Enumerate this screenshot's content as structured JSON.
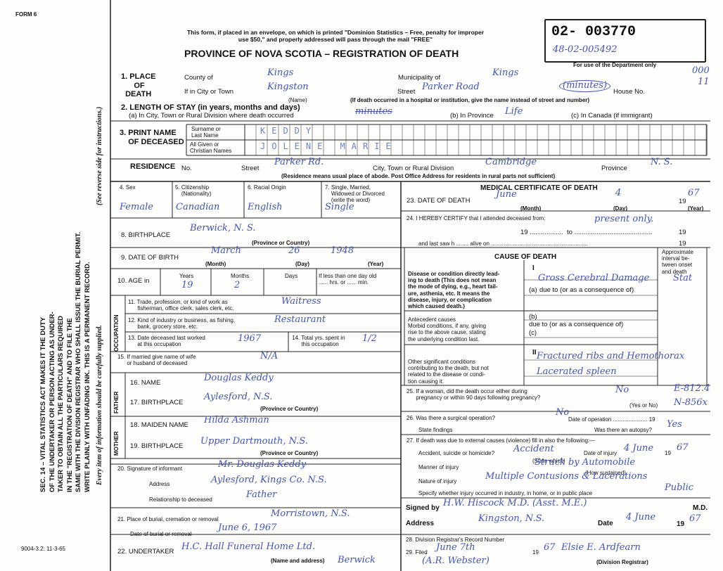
{
  "header": {
    "form_id": "FORM 6",
    "notice": "This form, if placed in an envelope, on which is printed \"Dominion Statistics – Free, penalty for improper\nuse $50,\" and properly addressed will pass through the mail \"FREE\"",
    "title": "PROVINCE OF NOVA SCOTIA – REGISTRATION OF DEATH",
    "registration_number": "02- 003770",
    "department_number": "48-02-005492",
    "department_note": "For use of the Department only",
    "margin_mark": "000",
    "margin_mark_2": "11"
  },
  "side": {
    "statute": "SEC. 14 – VITAL STATISTICS ACT MAKES IT THE DUTY\nOF THE UNDERTAKER OR PERSON ACTING AS UNDER-\nTAKER TO OBTAIN ALL THE PARTICULARS REQUIRED\nIN THE \"REGISTRATION OF DEATH\" AND TO FILE THE\nSAME WITH THE DIVISION REGISTRAR WHO SHALL ISSUE THE BURIAL PERMIT.\nWRITE PLAINLY WITH UNFADING INK. THIS IS A PERMANENT RECORD.",
    "note": "Every item of information should be carefully supplied.",
    "instructions": "(See reverse side for instructions.)",
    "print_code": "9004-3.2: 11-3-65"
  },
  "place_of_death": {
    "heading": "1. PLACE\n      OF\n  DEATH",
    "county_label": "County of",
    "county": "Kings",
    "municipality_label": "Municipality of",
    "municipality": "Kings",
    "city_label": "If in City or Town",
    "city": "Kingston",
    "name_caption": "(Name)",
    "street_label": "Street",
    "street": "Parker Road",
    "street_note": "(minutes)",
    "house_label": "House No.",
    "hospital_note": "(If death occurred in a hospital or institution, give the name instead of street and number)"
  },
  "length_of_stay": {
    "heading": "2. LENGTH OF STAY (in years, months and days)",
    "a_label": "(a) In City, Town or Rural Division where death occurred",
    "a": "minutes",
    "b_label": "(b) In Province",
    "b": "Life",
    "c_label": "(c) In Canada (if immigrant)"
  },
  "deceased": {
    "heading": "3. PRINT NAME\n    OF DECEASED",
    "surname_label": "Surname or\nLast Name",
    "surname": "KEDDY",
    "given_label": "All Given or\nChristian Names",
    "given": "JOLENE MARIE"
  },
  "residence": {
    "heading": "RESIDENCE",
    "no_label": "No.",
    "street_label": "Street",
    "street": "Parker Rd.",
    "city_label": "City, Town or Rural Division",
    "city": "Cambridge",
    "province_label": "Province",
    "province": "N. S.",
    "note": "(Residence means usual place of abode. Post Office Address for residents in rural parts not sufficient)"
  },
  "personal": {
    "sex_label": "4. Sex",
    "sex": "Female",
    "citizenship_label": "5. Citizenship\n    (Nationality)",
    "citizenship": "Canadian",
    "racial_label": "6. Racial Origin",
    "racial": "English",
    "marital_label": "7. Single, Married,\n    Widowed or Divorced\n    (write the word)",
    "marital": "Single"
  },
  "birthplace": {
    "label": "8. BIRTHPLACE",
    "value": "Berwick, N. S.",
    "caption": "(Province or Country)"
  },
  "birth_date": {
    "label": "9. DATE OF BIRTH",
    "month": "March",
    "day": "26",
    "year": "1948",
    "month_caption": "(Month)",
    "day_caption": "(Day)",
    "year_caption": "(Year)"
  },
  "age": {
    "label": "10. AGE in",
    "years_label": "Years",
    "months_label": "Months",
    "days_label": "Days",
    "less_label": "If less than one day old\n...... hrs. or ...... min.",
    "years": "19",
    "months": "2"
  },
  "occupation": {
    "side_label": "OCCUPATION",
    "trade_label": "11. Trade, profession, or kind of work as\n      fisherman, office clerk, sales clerk, etc.",
    "trade": "Waitress",
    "industry_label": "12. Kind of industry or business, as fishing,\n      bank, grocery store, etc.",
    "industry": "Restaurant",
    "last_worked_label": "13. Date deceased last worked\n      at this occupation",
    "last_worked": "1967",
    "years_label": "14. Total yrs. spent in\n      this occupation",
    "years": "1/2"
  },
  "spouse": {
    "label": "15. If married give name of wife\n      or husband of deceased",
    "value": "N/A"
  },
  "father": {
    "side_label": "FATHER",
    "name_label": "16. NAME",
    "name": "Douglas Keddy",
    "birthplace_label": "17. BIRTHPLACE",
    "birthplace": "Aylesford, N.S.",
    "caption": "(Province or Country)"
  },
  "mother": {
    "side_label": "MOTHER",
    "maiden_label": "18. MAIDEN NAME",
    "maiden": "Hilda Ashman",
    "birthplace_label": "19. BIRTHPLACE",
    "birthplace": "Upper Dartmouth, N.S.",
    "caption": "(Province or Country)"
  },
  "informant": {
    "label": "20. Signature of informant",
    "signature": "Mr. Douglas Keddy",
    "address_label": "Address",
    "address": "Aylesford, Kings Co. N.S.",
    "relationship_label": "Relationship to deceased",
    "relationship": "Father"
  },
  "burial": {
    "place_label": "21. Place of burial, cremation or removal",
    "place": "Morristown, N.S.",
    "date_label": "Date of burial or removal",
    "date": "June 6, 1967"
  },
  "undertaker": {
    "label": "22. UNDERTAKER",
    "name": "H.C. Hall Funeral Home Ltd.",
    "town": "Berwick",
    "caption": "(Name and address)"
  },
  "medical": {
    "heading": "MEDICAL CERTIFICATE OF DEATH",
    "death_label": "23. DATE OF DEATH",
    "death_month": "June",
    "death_day": "4",
    "century": "19",
    "death_year": "67",
    "month_caption": "(Month)",
    "day_caption": "(Day)",
    "year_caption": "(Year)",
    "certify_label": "24. I HEREBY CERTIFY that I attended deceased from:",
    "certify": "present only.",
    "from_to": "19 ..................  to ..........................................",
    "century_2": "19",
    "last_saw_label": "and last saw h ........ alive on ..............................................................",
    "century_3": "19"
  },
  "cause": {
    "heading": "CAUSE OF DEATH",
    "interval_label": "Approximate\ninterval be-\ntween onset\nand death",
    "part_1": "I",
    "disease_label": "Disease or condition directly lead-\ning to death (This does not mean\nthe mode of dying, e.g., heart fail-\nure, asthenia, etc. It means the\ndisease, injury, or complication\nwhich caused death.)",
    "a": "(a)",
    "a_value": "Gross Cerebral Damage",
    "a_interval": "Stat",
    "due_to_1": "due to (or as a consequence of)",
    "antecedent_label": "Antecedent causes\nMorbid conditions, if any, giving\nrise to the above cause, stating\nthe underlying condition last.",
    "b": "(b)",
    "due_to_2": "due to (or as a consequence of)",
    "c": "(c)",
    "part_2": "II",
    "other_label": "Other significant conditions\ncontributing to the death, but not\nrelated to the disease or condi-\ntion causing it.",
    "other_1": "Fractured ribs and Hemothorax",
    "other_2": "Lacerated spleen"
  },
  "pregnancy": {
    "label": "25. If a woman, did the death occur either during\n      pregnancy or within 90 days following pregnancy?",
    "value": "No",
    "caption": "(Yes or No)",
    "code_1": "E-812.4",
    "code_2": "N-856x"
  },
  "operation": {
    "label": "26. Was there a surgical operation?",
    "value": "No",
    "date_label": "Date of operation ...................... 19",
    "findings_label": "State findings",
    "autopsy_label": "Was there an autopsy?",
    "autopsy": "Yes"
  },
  "external": {
    "label": "27. If death was due to external causes (violence) fill in also the following:—",
    "kind_label": "Accident, suicide or homicide?",
    "kind": "Accident",
    "kind_caption": "(State which)",
    "date_label": "Date of injury",
    "date": "4 June",
    "century": "19",
    "year": "67",
    "manner_label": "Manner of injury",
    "manner": "Struck by Automobile",
    "manner_caption": "(How sustained)",
    "nature_label": "Nature of injury",
    "nature": "Multiple Contusions & Lacerations",
    "place_label": "Specify whether injury occurred in industry, in home, or in public place",
    "place": "Public"
  },
  "signature": {
    "signed_label": "Signed by",
    "signed": "H.W. Hiscock M.D. (Asst. M.E.)",
    "md": "M.D.",
    "address_label": "Address",
    "address": "Kingston, N.S.",
    "date_label": "Date",
    "date": "4 June",
    "century": "19",
    "year": "67"
  },
  "registrar": {
    "record_label": "28. Division Registrar's Record Number",
    "filed_label": "29. Filed",
    "filed": "June 7th",
    "century": "19",
    "year": "67",
    "signature": "Elsie E. Ardfearn",
    "caption": "(Division Registrar)",
    "stamp": "(A.R. Webster)"
  }
}
